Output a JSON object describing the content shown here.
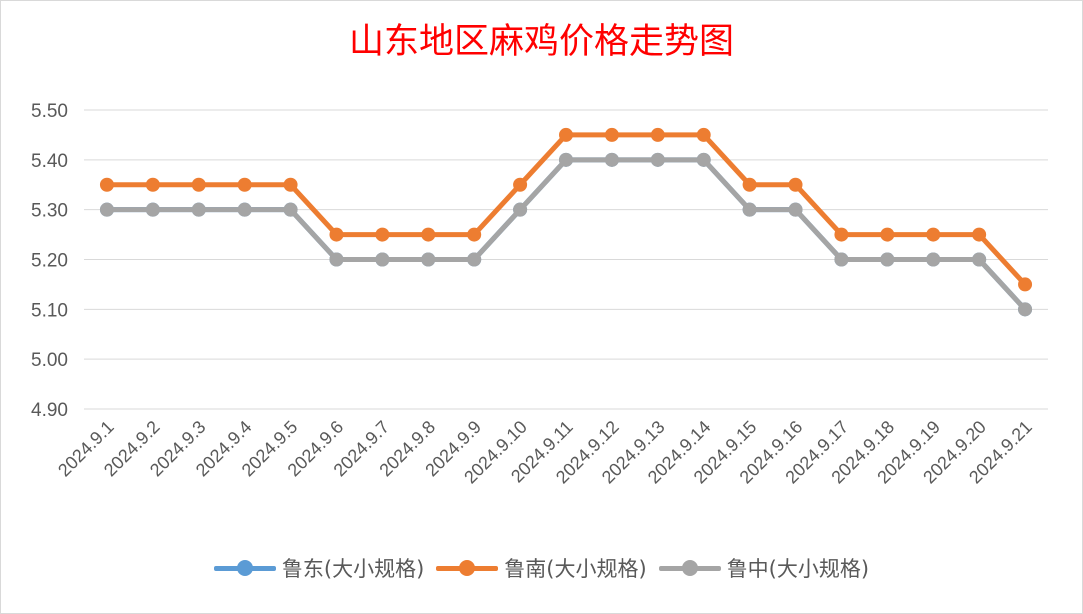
{
  "chart_data": {
    "type": "line",
    "title": "山东地区麻鸡价格走势图",
    "title_color": "#ff0000",
    "xlabel": "",
    "ylabel": "",
    "categories": [
      "2024.9.1",
      "2024.9.2",
      "2024.9.3",
      "2024.9.4",
      "2024.9.5",
      "2024.9.6",
      "2024.9.7",
      "2024.9.8",
      "2024.9.9",
      "2024.9.10",
      "2024.9.11",
      "2024.9.12",
      "2024.9.13",
      "2024.9.14",
      "2024.9.15",
      "2024.9.16",
      "2024.9.17",
      "2024.9.18",
      "2024.9.19",
      "2024.9.20",
      "2024.9.21"
    ],
    "ylim": [
      4.9,
      5.5
    ],
    "yticks": [
      "4.90",
      "5.00",
      "5.10",
      "5.20",
      "5.30",
      "5.40",
      "5.50"
    ],
    "grid": true,
    "legend_position": "bottom",
    "series": [
      {
        "name": "鲁东(大小规格)",
        "color": "#5b9bd5",
        "values": [
          5.3,
          5.3,
          5.3,
          5.3,
          5.3,
          5.2,
          5.2,
          5.2,
          5.2,
          5.3,
          5.4,
          5.4,
          5.4,
          5.4,
          5.3,
          5.3,
          5.2,
          5.2,
          5.2,
          5.2,
          5.1
        ]
      },
      {
        "name": "鲁南(大小规格)",
        "color": "#ed7d31",
        "values": [
          5.35,
          5.35,
          5.35,
          5.35,
          5.35,
          5.25,
          5.25,
          5.25,
          5.25,
          5.35,
          5.45,
          5.45,
          5.45,
          5.45,
          5.35,
          5.35,
          5.25,
          5.25,
          5.25,
          5.25,
          5.15
        ]
      },
      {
        "name": "鲁中(大小规格)",
        "color": "#a5a5a5",
        "values": [
          5.3,
          5.3,
          5.3,
          5.3,
          5.3,
          5.2,
          5.2,
          5.2,
          5.2,
          5.3,
          5.4,
          5.4,
          5.4,
          5.4,
          5.3,
          5.3,
          5.2,
          5.2,
          5.2,
          5.2,
          5.1
        ]
      }
    ]
  }
}
